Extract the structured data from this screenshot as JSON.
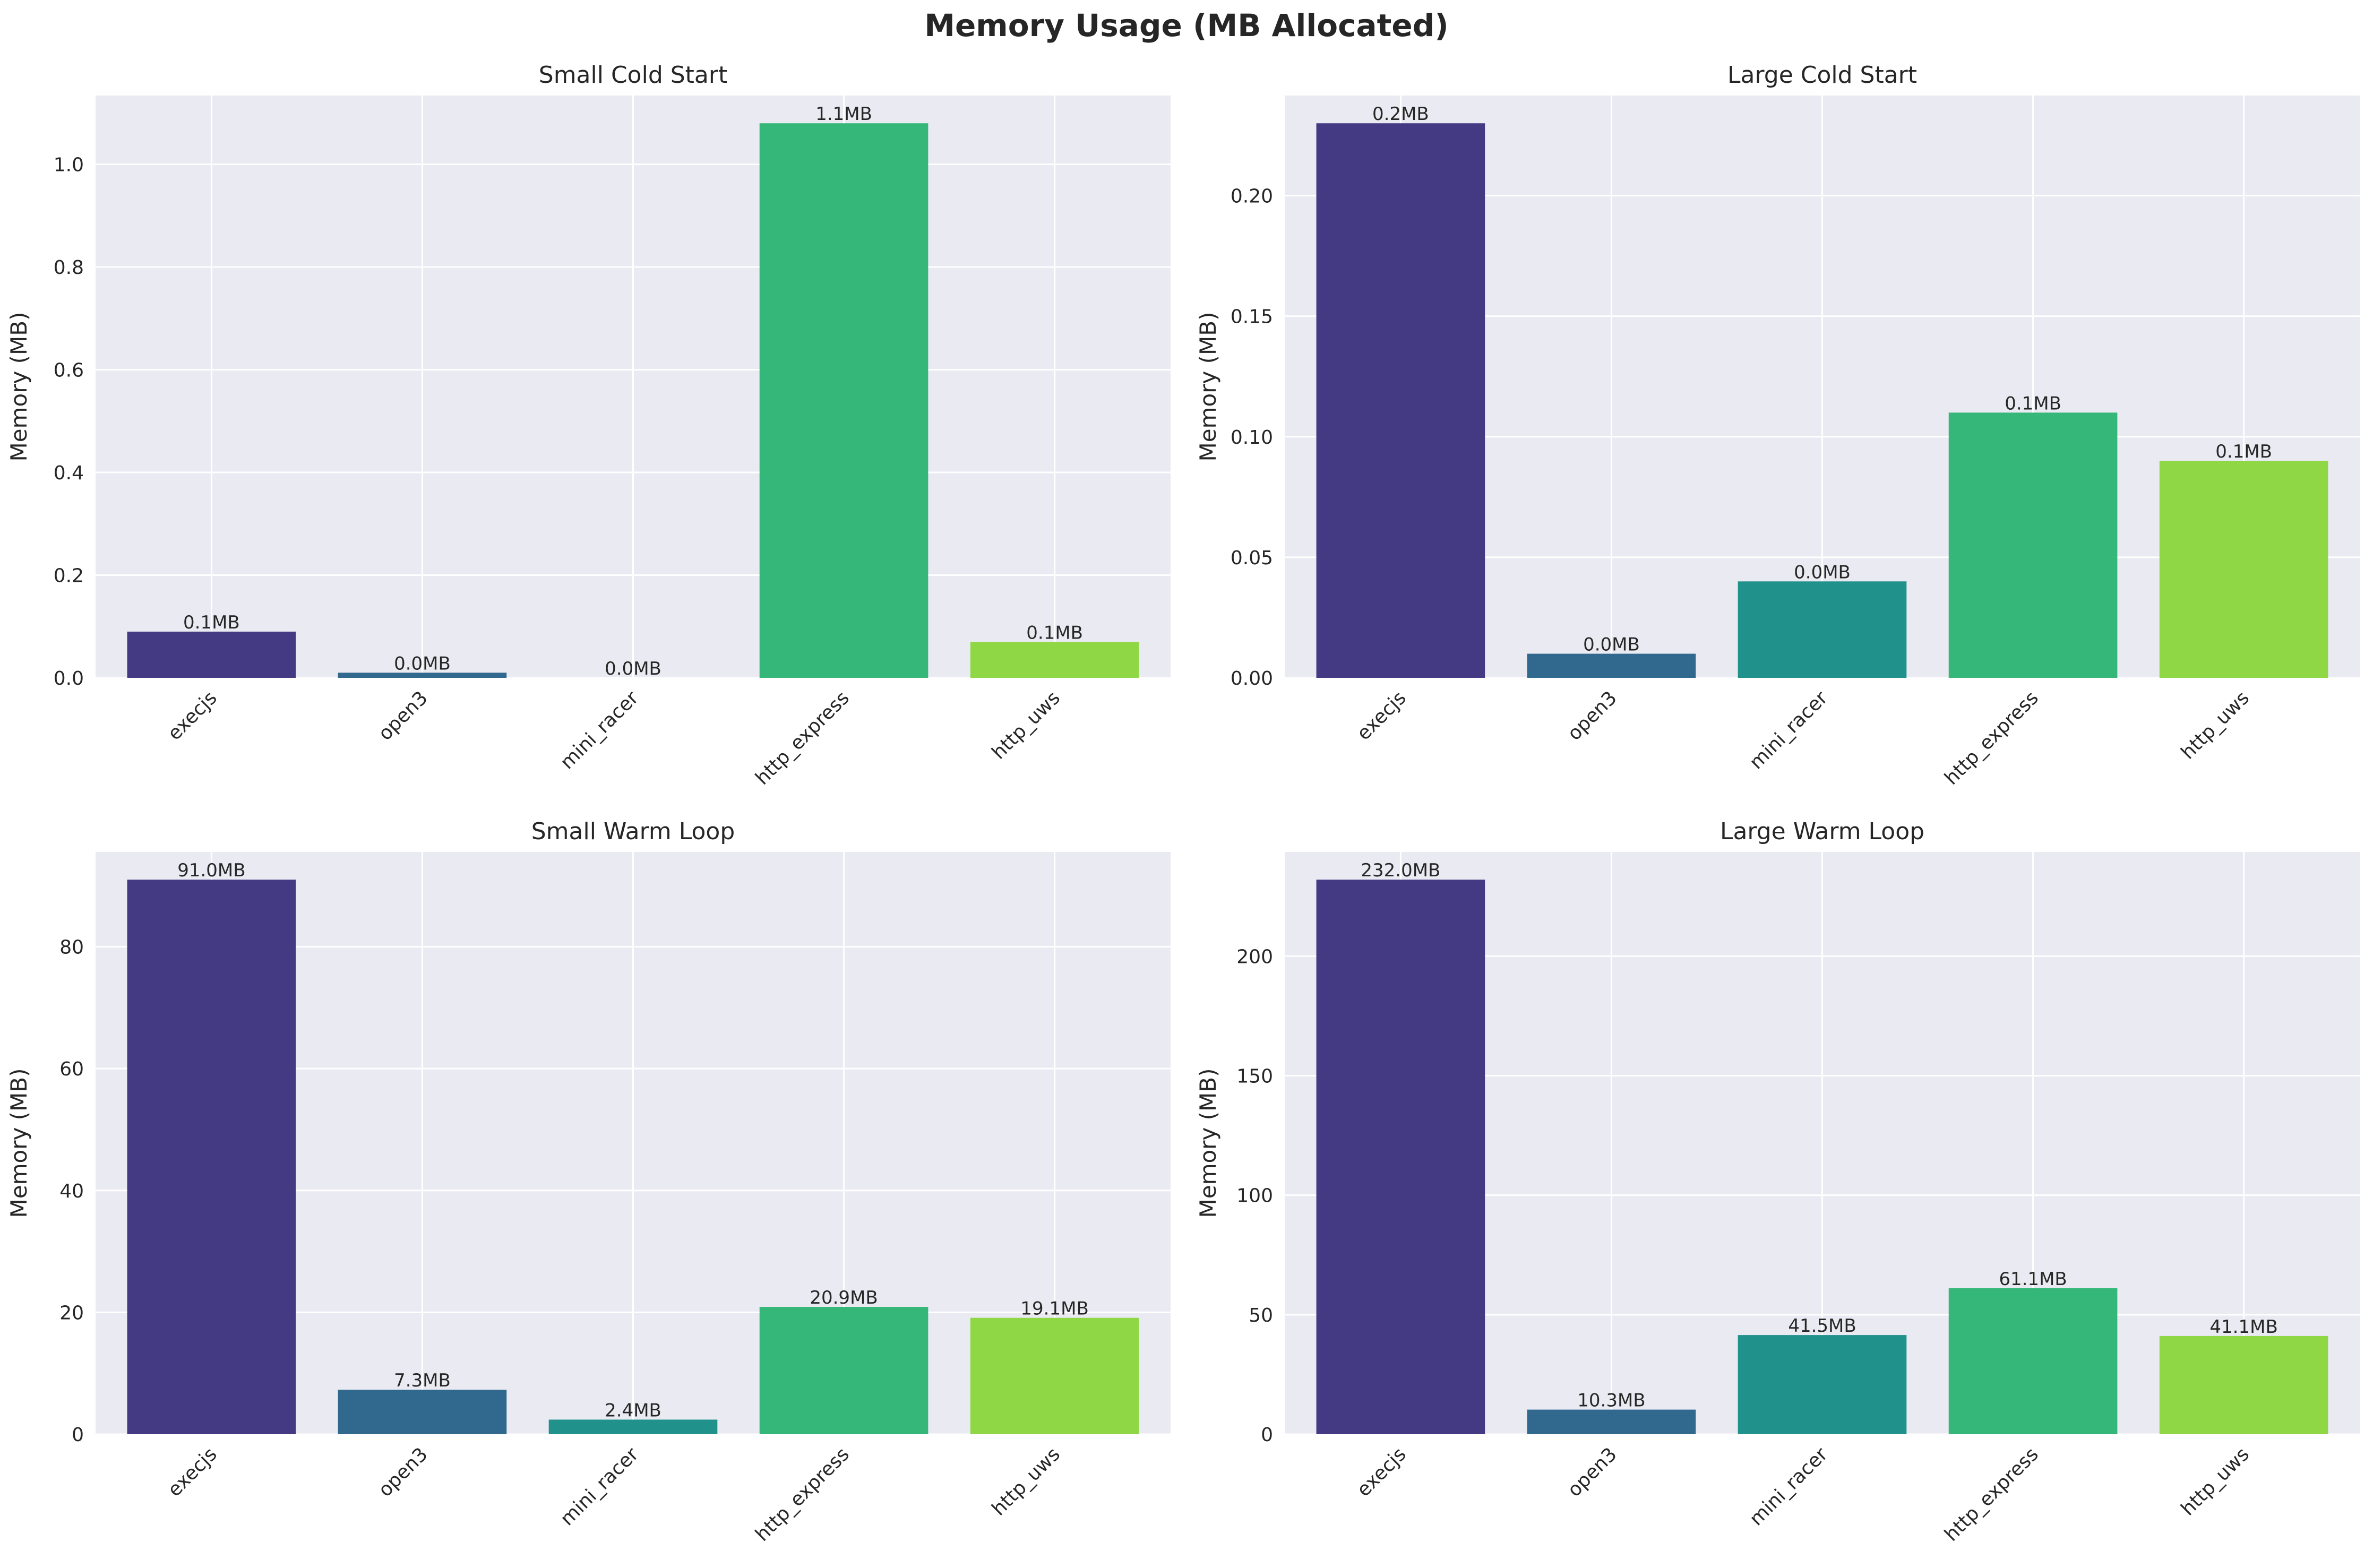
{
  "suptitle": "Memory Usage (MB Allocated)",
  "palette": [
    "#443983",
    "#31688e",
    "#21918c",
    "#35b779",
    "#8fd744"
  ],
  "chart_data": [
    {
      "type": "bar",
      "title": "Small Cold Start",
      "ylabel": "Memory (MB)",
      "categories": [
        "execjs",
        "open3",
        "mini_racer",
        "http_express",
        "http_uws"
      ],
      "values": [
        0.09,
        0.01,
        0.0,
        1.08,
        0.07
      ],
      "labels": [
        "0.1MB",
        "0.0MB",
        "0.0MB",
        "1.1MB",
        "0.1MB"
      ],
      "ylim": [
        0,
        1.134
      ],
      "yticks": [
        0.0,
        0.2,
        0.4,
        0.6,
        0.8,
        1.0
      ],
      "ytick_labels": [
        "0.0",
        "0.2",
        "0.4",
        "0.6",
        "0.8",
        "1.0"
      ],
      "grid": true
    },
    {
      "type": "bar",
      "title": "Large Cold Start",
      "ylabel": "Memory (MB)",
      "categories": [
        "execjs",
        "open3",
        "mini_racer",
        "http_express",
        "http_uws"
      ],
      "values": [
        0.23,
        0.01,
        0.04,
        0.11,
        0.09
      ],
      "labels": [
        "0.2MB",
        "0.0MB",
        "0.0MB",
        "0.1MB",
        "0.1MB"
      ],
      "ylim": [
        0,
        0.2415
      ],
      "yticks": [
        0.0,
        0.05,
        0.1,
        0.15,
        0.2
      ],
      "ytick_labels": [
        "0.00",
        "0.05",
        "0.10",
        "0.15",
        "0.20"
      ],
      "grid": true
    },
    {
      "type": "bar",
      "title": "Small Warm Loop",
      "ylabel": "Memory (MB)",
      "categories": [
        "execjs",
        "open3",
        "mini_racer",
        "http_express",
        "http_uws"
      ],
      "values": [
        91.0,
        7.3,
        2.4,
        20.9,
        19.1
      ],
      "labels": [
        "91.0MB",
        "7.3MB",
        "2.4MB",
        "20.9MB",
        "19.1MB"
      ],
      "ylim": [
        0,
        95.55
      ],
      "yticks": [
        0,
        20,
        40,
        60,
        80
      ],
      "ytick_labels": [
        "0",
        "20",
        "40",
        "60",
        "80"
      ],
      "grid": true
    },
    {
      "type": "bar",
      "title": "Large Warm Loop",
      "ylabel": "Memory (MB)",
      "categories": [
        "execjs",
        "open3",
        "mini_racer",
        "http_express",
        "http_uws"
      ],
      "values": [
        232.0,
        10.3,
        41.5,
        61.1,
        41.1
      ],
      "labels": [
        "232.0MB",
        "10.3MB",
        "41.5MB",
        "61.1MB",
        "41.1MB"
      ],
      "ylim": [
        0,
        243.6
      ],
      "yticks": [
        0,
        50,
        100,
        150,
        200
      ],
      "ytick_labels": [
        "0",
        "50",
        "100",
        "150",
        "200"
      ],
      "grid": true
    }
  ]
}
